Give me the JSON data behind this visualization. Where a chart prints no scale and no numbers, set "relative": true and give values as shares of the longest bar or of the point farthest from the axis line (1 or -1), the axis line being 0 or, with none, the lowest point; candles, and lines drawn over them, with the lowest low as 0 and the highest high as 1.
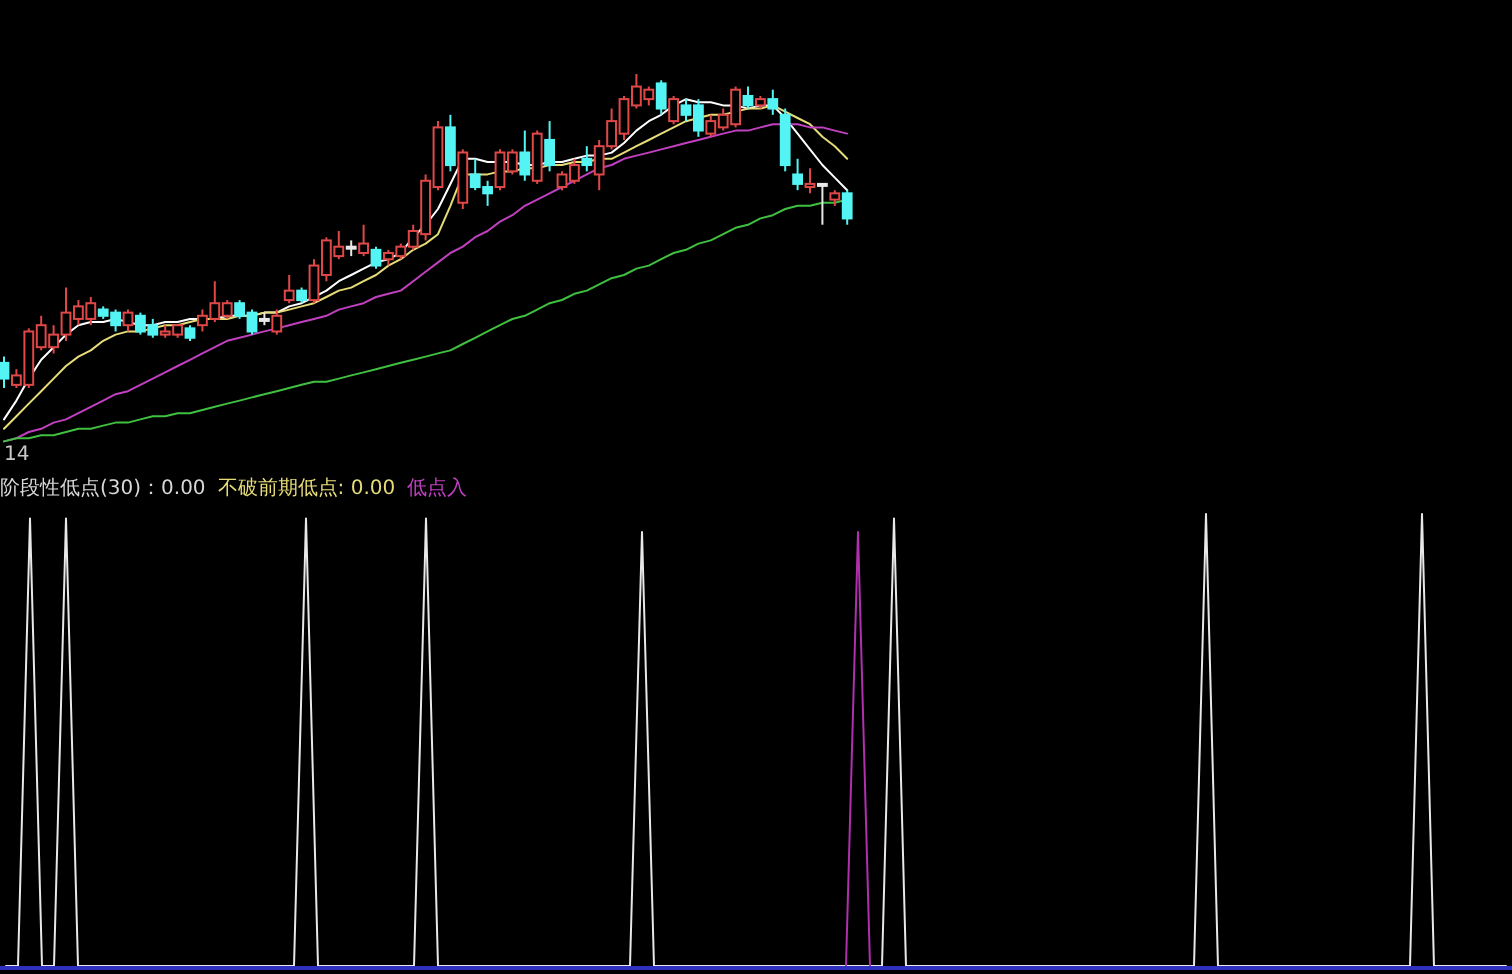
{
  "chart_data": [
    {
      "type": "candlestick",
      "relative": true,
      "categories": [
        null,
        null,
        null,
        null,
        null,
        null,
        null,
        null,
        null,
        null,
        null,
        null,
        null,
        null,
        null,
        null,
        null,
        null,
        null,
        null,
        null,
        null,
        null,
        null,
        null,
        null,
        null,
        null,
        null,
        null,
        null,
        null,
        null,
        null,
        null,
        null,
        null,
        null,
        null,
        null,
        null,
        null,
        null,
        null,
        null,
        null,
        null,
        null,
        null,
        null,
        null,
        null,
        null,
        null,
        null,
        null,
        null,
        null,
        null,
        null,
        null,
        null,
        null,
        null,
        null,
        null,
        null,
        null,
        null
      ],
      "ohlc": [
        [
          0.08,
          0.1,
          0,
          0.03
        ],
        [
          0.01,
          0.06,
          0,
          0.04
        ],
        [
          0.01,
          0.19,
          0,
          0.18
        ],
        [
          0.13,
          0.23,
          0.12,
          0.2
        ],
        [
          0.13,
          0.2,
          0.11,
          0.17
        ],
        [
          0.17,
          0.32,
          0.15,
          0.24
        ],
        [
          0.22,
          0.28,
          0.2,
          0.26
        ],
        [
          0.22,
          0.29,
          0.2,
          0.27
        ],
        [
          0.25,
          0.26,
          0.22,
          0.23
        ],
        [
          0.24,
          0.25,
          0.18,
          0.2
        ],
        [
          0.2,
          0.25,
          0.18,
          0.24
        ],
        [
          0.23,
          0.24,
          0.17,
          0.18
        ],
        [
          0.2,
          0.22,
          0.16,
          0.17
        ],
        [
          0.17,
          0.2,
          0.16,
          0.18
        ],
        [
          0.17,
          0.2,
          0.16,
          0.2
        ],
        [
          0.19,
          0.2,
          0.15,
          0.16
        ],
        [
          0.2,
          0.25,
          0.18,
          0.23
        ],
        [
          0.22,
          0.34,
          0.21,
          0.27
        ],
        [
          0.23,
          0.28,
          0.22,
          0.27
        ],
        [
          0.27,
          0.28,
          0.22,
          0.23
        ],
        [
          0.24,
          0.25,
          0.17,
          0.18
        ],
        [
          0.22,
          0.24,
          0.2,
          0.22
        ],
        [
          0.18,
          0.25,
          0.17,
          0.23
        ],
        [
          0.28,
          0.36,
          0.27,
          0.31
        ],
        [
          0.31,
          0.32,
          0.27,
          0.28
        ],
        [
          0.28,
          0.41,
          0.27,
          0.39
        ],
        [
          0.36,
          0.48,
          0.34,
          0.47
        ],
        [
          0.42,
          0.5,
          0.41,
          0.45
        ],
        [
          0.45,
          0.47,
          0.42,
          0.45
        ],
        [
          0.43,
          0.52,
          0.42,
          0.46
        ],
        [
          0.44,
          0.45,
          0.38,
          0.39
        ],
        [
          0.41,
          0.44,
          0.39,
          0.43
        ],
        [
          0.42,
          0.46,
          0.41,
          0.45
        ],
        [
          0.45,
          0.52,
          0.44,
          0.5
        ],
        [
          0.49,
          0.68,
          0.47,
          0.66
        ],
        [
          0.64,
          0.85,
          0.63,
          0.83
        ],
        [
          0.83,
          0.87,
          0.69,
          0.71
        ],
        [
          0.59,
          0.76,
          0.57,
          0.75
        ],
        [
          0.68,
          0.73,
          0.63,
          0.64
        ],
        [
          0.64,
          0.66,
          0.58,
          0.62
        ],
        [
          0.64,
          0.76,
          0.63,
          0.75
        ],
        [
          0.69,
          0.76,
          0.68,
          0.75
        ],
        [
          0.75,
          0.82,
          0.66,
          0.68
        ],
        [
          0.66,
          0.82,
          0.65,
          0.81
        ],
        [
          0.79,
          0.85,
          0.69,
          0.71
        ],
        [
          0.64,
          0.69,
          0.63,
          0.68
        ],
        [
          0.66,
          0.73,
          0.65,
          0.71
        ],
        [
          0.73,
          0.77,
          0.69,
          0.71
        ],
        [
          0.68,
          0.79,
          0.63,
          0.77
        ],
        [
          0.77,
          0.89,
          0.76,
          0.85
        ],
        [
          0.81,
          0.93,
          0.79,
          0.92
        ],
        [
          0.9,
          1,
          0.89,
          0.96
        ],
        [
          0.92,
          0.96,
          0.9,
          0.95
        ],
        [
          0.97,
          0.98,
          0.87,
          0.89
        ],
        [
          0.85,
          0.93,
          0.84,
          0.92
        ],
        [
          0.9,
          0.92,
          0.85,
          0.87
        ],
        [
          0.9,
          0.92,
          0.8,
          0.82
        ],
        [
          0.81,
          0.87,
          0.8,
          0.85
        ],
        [
          0.83,
          0.89,
          0.82,
          0.87
        ],
        [
          0.84,
          0.96,
          0.83,
          0.95
        ],
        [
          0.93,
          0.96,
          0.89,
          0.9
        ],
        [
          0.9,
          0.93,
          0.89,
          0.92
        ],
        [
          0.92,
          0.95,
          0.87,
          0.89
        ],
        [
          0.87,
          0.89,
          0.69,
          0.71
        ],
        [
          0.68,
          0.73,
          0.63,
          0.65
        ],
        [
          0.64,
          0.7,
          0.62,
          0.65
        ],
        [
          0.65,
          0.65,
          0.52,
          0.65
        ],
        [
          0.6,
          0.63,
          0.58,
          0.62
        ],
        [
          0.62,
          0.63,
          0.52,
          0.54
        ]
      ],
      "series": [
        {
          "type": "line",
          "color": "#ffffff",
          "values": [
            -0.1,
            -0.04,
            0.03,
            0.09,
            0.13,
            0.17,
            0.2,
            0.21,
            0.21,
            0.22,
            0.21,
            0.2,
            0.2,
            0.21,
            0.21,
            0.22,
            0.22,
            0.22,
            0.23,
            0.23,
            0.23,
            0.24,
            0.24,
            0.26,
            0.27,
            0.29,
            0.31,
            0.34,
            0.36,
            0.38,
            0.4,
            0.41,
            0.43,
            0.48,
            0.52,
            0.57,
            0.65,
            0.73,
            0.73,
            0.72,
            0.72,
            0.72,
            0.71,
            0.71,
            0.72,
            0.72,
            0.73,
            0.74,
            0.74,
            0.75,
            0.78,
            0.82,
            0.85,
            0.87,
            0.9,
            0.92,
            0.91,
            0.91,
            0.9,
            0.9,
            0.89,
            0.9,
            0.9,
            0.86,
            0.81,
            0.76,
            0.71,
            0.67,
            0.63
          ]
        },
        {
          "type": "line",
          "color": "#e6dc78",
          "values": [
            -0.13,
            -0.09,
            -0.05,
            -0.01,
            0.03,
            0.07,
            0.1,
            0.12,
            0.15,
            0.17,
            0.18,
            0.18,
            0.19,
            0.2,
            0.2,
            0.21,
            0.22,
            0.22,
            0.22,
            0.23,
            0.23,
            0.24,
            0.24,
            0.25,
            0.26,
            0.27,
            0.29,
            0.31,
            0.32,
            0.34,
            0.36,
            0.39,
            0.41,
            0.44,
            0.46,
            0.49,
            0.58,
            0.68,
            0.68,
            0.68,
            0.69,
            0.69,
            0.7,
            0.7,
            0.71,
            0.71,
            0.72,
            0.72,
            0.73,
            0.73,
            0.75,
            0.77,
            0.79,
            0.81,
            0.83,
            0.85,
            0.86,
            0.87,
            0.87,
            0.88,
            0.89,
            0.89,
            0.9,
            0.88,
            0.86,
            0.84,
            0.8,
            0.77,
            0.73
          ]
        },
        {
          "type": "line",
          "color": "#c040c0",
          "values": [
            -0.17,
            -0.16,
            -0.14,
            -0.13,
            -0.11,
            -0.1,
            -0.08,
            -0.06,
            -0.04,
            -0.02,
            -0.01,
            0.01,
            0.03,
            0.05,
            0.07,
            0.09,
            0.11,
            0.13,
            0.15,
            0.16,
            0.17,
            0.18,
            0.19,
            0.2,
            0.21,
            0.22,
            0.23,
            0.25,
            0.26,
            0.27,
            0.29,
            0.3,
            0.31,
            0.34,
            0.37,
            0.4,
            0.43,
            0.45,
            0.48,
            0.5,
            0.53,
            0.55,
            0.58,
            0.6,
            0.62,
            0.64,
            0.66,
            0.68,
            0.7,
            0.71,
            0.73,
            0.74,
            0.75,
            0.76,
            0.77,
            0.78,
            0.79,
            0.8,
            0.81,
            0.82,
            0.82,
            0.83,
            0.84,
            0.84,
            0.84,
            0.83,
            0.83,
            0.82,
            0.81
          ]
        },
        {
          "type": "line",
          "color": "#40c040",
          "values": [
            -0.17,
            -0.16,
            -0.16,
            -0.15,
            -0.15,
            -0.14,
            -0.13,
            -0.13,
            -0.12,
            -0.11,
            -0.11,
            -0.1,
            -0.09,
            -0.09,
            -0.08,
            -0.08,
            -0.07,
            -0.06,
            -0.05,
            -0.04,
            -0.03,
            -0.02,
            -0.01,
            0,
            0.01,
            0.02,
            0.02,
            0.03,
            0.04,
            0.05,
            0.06,
            0.07,
            0.08,
            0.09,
            0.1,
            0.11,
            0.12,
            0.14,
            0.16,
            0.18,
            0.2,
            0.22,
            0.23,
            0.25,
            0.27,
            0.28,
            0.3,
            0.31,
            0.33,
            0.35,
            0.36,
            0.38,
            0.39,
            0.41,
            0.43,
            0.44,
            0.46,
            0.47,
            0.49,
            0.51,
            0.52,
            0.54,
            0.55,
            0.57,
            0.58,
            0.58,
            0.59,
            0.59,
            0.6
          ]
        }
      ],
      "annotations": [
        "14"
      ]
    },
    {
      "type": "line",
      "relative": true,
      "categories": [
        null,
        null,
        null,
        null,
        null,
        null,
        null,
        null,
        null,
        null,
        null,
        null,
        null,
        null,
        null,
        null,
        null,
        null,
        null,
        null,
        null,
        null,
        null,
        null,
        null,
        null,
        null,
        null,
        null,
        null,
        null,
        null,
        null,
        null,
        null,
        null,
        null,
        null,
        null,
        null,
        null,
        null,
        null,
        null,
        null,
        null,
        null,
        null,
        null,
        null,
        null,
        null,
        null,
        null,
        null,
        null,
        null,
        null,
        null,
        null,
        null,
        null,
        null,
        null,
        null,
        null,
        null,
        null,
        null,
        null,
        null,
        null,
        null,
        null,
        null,
        null,
        null,
        null,
        null,
        null,
        null,
        null,
        null,
        null,
        null,
        null,
        null,
        null,
        null,
        null,
        null,
        null,
        null,
        null,
        null,
        null,
        null,
        null,
        null,
        null,
        null,
        null,
        null,
        null,
        null,
        null,
        null,
        null,
        null,
        null,
        null,
        null,
        null,
        null,
        null,
        null,
        null,
        null,
        null,
        null,
        null,
        null,
        null,
        null,
        null,
        null
      ],
      "series": [
        {
          "color": "#e8e8e8",
          "values": [
            0,
            0,
            0.99,
            0,
            0,
            0.99,
            0,
            0,
            0,
            0,
            0,
            0,
            0,
            0,
            0,
            0,
            0,
            0,
            0,
            0,
            0,
            0,
            0,
            0,
            0,
            0.99,
            0,
            0,
            0,
            0,
            0,
            0,
            0,
            0,
            0,
            0.99,
            0,
            0,
            0,
            0,
            0,
            0,
            0,
            0,
            0,
            0,
            0,
            0,
            0,
            0,
            0,
            0,
            0,
            0.96,
            0,
            0,
            0,
            0,
            0,
            0,
            0,
            0,
            0,
            0,
            0,
            0,
            0,
            0,
            0,
            0,
            0,
            0,
            0,
            0,
            0.99,
            0,
            0,
            0,
            0,
            0,
            0,
            0,
            0,
            0,
            0,
            0,
            0,
            0,
            0,
            0,
            0,
            0,
            0,
            0,
            0,
            0,
            0,
            0,
            0,
            0,
            1,
            0,
            0,
            0,
            0,
            0,
            0,
            0,
            0,
            0,
            0,
            0,
            0,
            0,
            0,
            0,
            0,
            0,
            1,
            0,
            0,
            0,
            0,
            0,
            0,
            0
          ]
        },
        {
          "color": "#b030b0",
          "values": [
            null,
            null,
            null,
            null,
            null,
            null,
            null,
            null,
            null,
            null,
            null,
            null,
            null,
            null,
            null,
            null,
            null,
            null,
            null,
            null,
            null,
            null,
            null,
            null,
            null,
            null,
            null,
            null,
            null,
            null,
            null,
            null,
            null,
            null,
            null,
            null,
            null,
            null,
            null,
            null,
            null,
            null,
            null,
            null,
            null,
            null,
            null,
            null,
            null,
            null,
            null,
            null,
            null,
            null,
            null,
            null,
            null,
            null,
            null,
            null,
            null,
            null,
            null,
            null,
            null,
            null,
            null,
            null,
            null,
            null,
            0,
            0.96,
            0,
            null,
            null,
            null,
            null,
            null,
            null,
            null,
            null,
            null,
            null,
            null,
            null,
            null,
            null,
            null,
            null,
            null,
            null,
            null,
            null,
            null,
            null,
            null,
            null,
            null,
            null,
            null,
            null,
            null,
            null,
            null,
            null,
            null,
            null,
            null,
            null,
            null,
            null,
            null,
            null,
            null,
            null,
            null,
            null,
            null,
            null,
            null,
            null,
            null,
            null,
            null,
            null,
            null
          ]
        }
      ],
      "annotations": [
        "阶段性低点(30)：0.00",
        "不破前期低点: 0.00",
        "低点入"
      ]
    }
  ]
}
